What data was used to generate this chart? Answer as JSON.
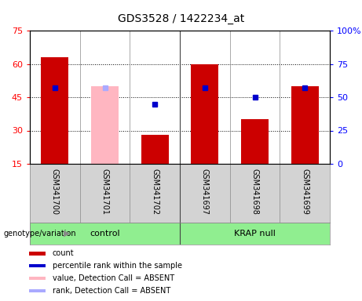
{
  "title": "GDS3528 / 1422234_at",
  "samples": [
    "GSM341700",
    "GSM341701",
    "GSM341702",
    "GSM341697",
    "GSM341698",
    "GSM341699"
  ],
  "groups": [
    {
      "name": "control",
      "indices": [
        0,
        1,
        2
      ],
      "color": "#90EE90"
    },
    {
      "name": "KRAP null",
      "indices": [
        3,
        4,
        5
      ],
      "color": "#66DD66"
    }
  ],
  "count_values": [
    63,
    null,
    28,
    60,
    35,
    50
  ],
  "count_absent_values": [
    null,
    50,
    null,
    null,
    null,
    null
  ],
  "percentile_values": [
    57,
    null,
    45,
    57,
    50,
    57
  ],
  "percentile_absent_values": [
    null,
    57,
    null,
    null,
    null,
    null
  ],
  "ylim_left": [
    15,
    75
  ],
  "ylim_right": [
    0,
    100
  ],
  "yticks_left": [
    15,
    30,
    45,
    60,
    75
  ],
  "yticks_right": [
    0,
    25,
    50,
    75,
    100
  ],
  "ytick_labels_right": [
    "0",
    "25",
    "50",
    "75",
    "100%"
  ],
  "bar_color": "#cc0000",
  "bar_absent_color": "#ffb6c1",
  "dot_color": "#0000cc",
  "dot_absent_color": "#aaaaff",
  "grid_lines": [
    60,
    45,
    30
  ],
  "sample_bg": "#d3d3d3",
  "plot_bg": "#ffffff",
  "group_color": "#90EE90",
  "legend_items": [
    {
      "label": "count",
      "color": "#cc0000"
    },
    {
      "label": "percentile rank within the sample",
      "color": "#0000cc"
    },
    {
      "label": "value, Detection Call = ABSENT",
      "color": "#ffb6c1"
    },
    {
      "label": "rank, Detection Call = ABSENT",
      "color": "#aaaaff"
    }
  ]
}
